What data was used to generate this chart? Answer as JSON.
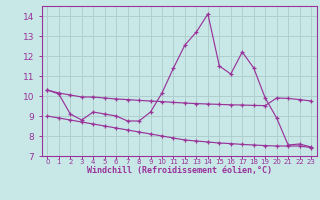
{
  "background_color": "#c8e8e8",
  "grid_color": "#b0cece",
  "line_color": "#993399",
  "x_labels": [
    "0",
    "1",
    "2",
    "3",
    "4",
    "5",
    "6",
    "7",
    "8",
    "9",
    "10",
    "11",
    "12",
    "13",
    "14",
    "15",
    "16",
    "17",
    "18",
    "19",
    "20",
    "21",
    "22",
    "23"
  ],
  "x_values": [
    0,
    1,
    2,
    3,
    4,
    5,
    6,
    7,
    8,
    9,
    10,
    11,
    12,
    13,
    14,
    15,
    16,
    17,
    18,
    19,
    20,
    21,
    22,
    23
  ],
  "main_line": [
    10.3,
    10.1,
    9.1,
    8.8,
    9.2,
    9.1,
    9.0,
    8.75,
    8.75,
    9.2,
    10.15,
    11.4,
    12.55,
    13.2,
    14.1,
    11.5,
    11.1,
    12.2,
    11.4,
    9.9,
    8.9,
    7.55,
    7.6,
    7.45
  ],
  "upper_line": [
    10.3,
    10.15,
    10.05,
    9.95,
    9.95,
    9.9,
    9.85,
    9.82,
    9.78,
    9.75,
    9.72,
    9.68,
    9.65,
    9.62,
    9.6,
    9.58,
    9.56,
    9.55,
    9.53,
    9.52,
    9.9,
    9.88,
    9.82,
    9.75
  ],
  "lower_line": [
    9.0,
    8.9,
    8.8,
    8.7,
    8.6,
    8.5,
    8.4,
    8.3,
    8.2,
    8.1,
    8.0,
    7.9,
    7.8,
    7.75,
    7.7,
    7.65,
    7.62,
    7.58,
    7.55,
    7.52,
    7.5,
    7.5,
    7.5,
    7.42
  ],
  "ylim": [
    7,
    14.5
  ],
  "yticks": [
    7,
    8,
    9,
    10,
    11,
    12,
    13,
    14
  ],
  "xlabel": "Windchill (Refroidissement éolien,°C)",
  "figsize": [
    3.2,
    2.0
  ],
  "dpi": 100
}
